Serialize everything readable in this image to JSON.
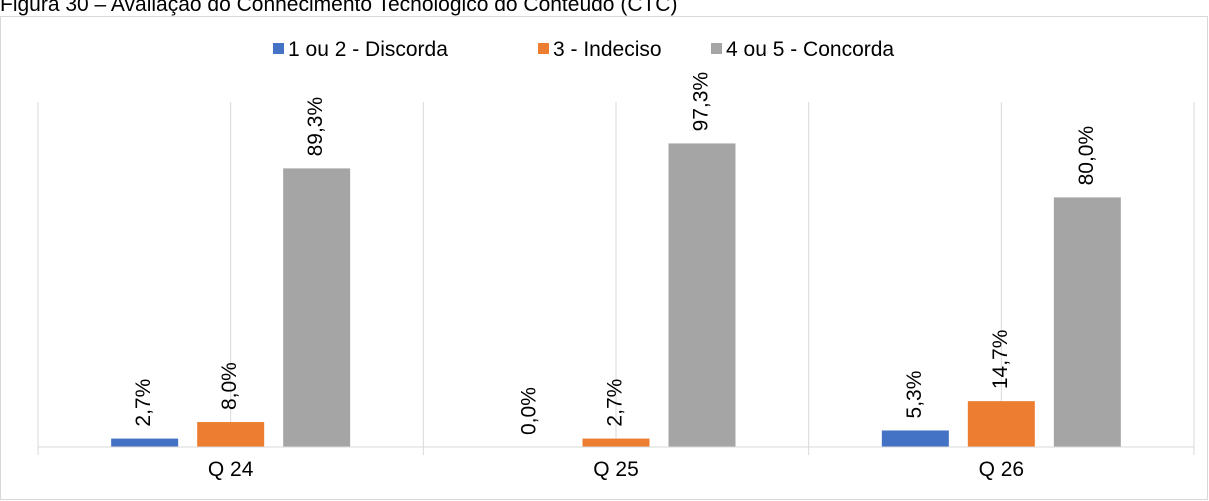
{
  "caption": "Figura 30 – Avaliação do Conhecimento Tecnológico do Conteúdo (CTC)",
  "chart_data": {
    "type": "bar",
    "categories": [
      "Q 24",
      "Q 25",
      "Q 26"
    ],
    "series": [
      {
        "name": "1 ou 2 - Discorda",
        "values": [
          2.7,
          0.0,
          5.3
        ],
        "labels": [
          "2,7%",
          "0,0%",
          "5,3%"
        ],
        "color": "#4472c4"
      },
      {
        "name": "3 - Indeciso",
        "values": [
          8.0,
          2.7,
          14.7
        ],
        "labels": [
          "8,0%",
          "2,7%",
          "14,7%"
        ],
        "color": "#ed7d31"
      },
      {
        "name": "4 ou 5 - Concorda",
        "values": [
          89.3,
          97.3,
          80.0
        ],
        "labels": [
          "89,3%",
          "97,3%",
          "80,0%"
        ],
        "color": "#a5a5a5"
      }
    ],
    "ylim": [
      0,
      100
    ],
    "grid": "vertical",
    "legend": "top-center",
    "data_label_orientation": "vertical"
  }
}
